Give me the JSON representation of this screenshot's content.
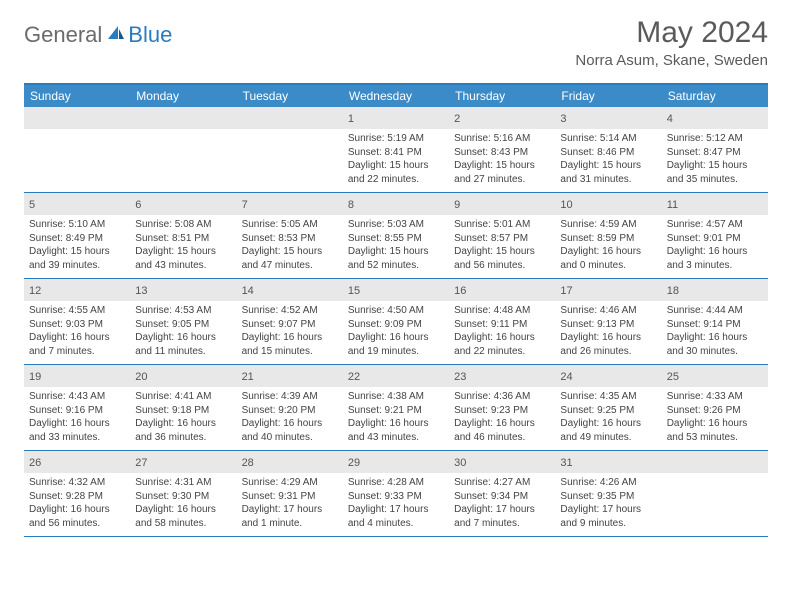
{
  "logo": {
    "general": "General",
    "blue": "Blue"
  },
  "title": "May 2024",
  "location": "Norra Asum, Skane, Sweden",
  "colors": {
    "header_bg": "#3b8bc9",
    "border": "#2b7bbf",
    "daynum_bg": "#e8e8e8",
    "text": "#444444"
  },
  "dayHeaders": [
    "Sunday",
    "Monday",
    "Tuesday",
    "Wednesday",
    "Thursday",
    "Friday",
    "Saturday"
  ],
  "weeks": [
    [
      {
        "empty": true
      },
      {
        "empty": true
      },
      {
        "empty": true
      },
      {
        "n": "1",
        "sunrise": "5:19 AM",
        "sunset": "8:41 PM",
        "daylight": "15 hours and 22 minutes."
      },
      {
        "n": "2",
        "sunrise": "5:16 AM",
        "sunset": "8:43 PM",
        "daylight": "15 hours and 27 minutes."
      },
      {
        "n": "3",
        "sunrise": "5:14 AM",
        "sunset": "8:46 PM",
        "daylight": "15 hours and 31 minutes."
      },
      {
        "n": "4",
        "sunrise": "5:12 AM",
        "sunset": "8:47 PM",
        "daylight": "15 hours and 35 minutes."
      }
    ],
    [
      {
        "n": "5",
        "sunrise": "5:10 AM",
        "sunset": "8:49 PM",
        "daylight": "15 hours and 39 minutes."
      },
      {
        "n": "6",
        "sunrise": "5:08 AM",
        "sunset": "8:51 PM",
        "daylight": "15 hours and 43 minutes."
      },
      {
        "n": "7",
        "sunrise": "5:05 AM",
        "sunset": "8:53 PM",
        "daylight": "15 hours and 47 minutes."
      },
      {
        "n": "8",
        "sunrise": "5:03 AM",
        "sunset": "8:55 PM",
        "daylight": "15 hours and 52 minutes."
      },
      {
        "n": "9",
        "sunrise": "5:01 AM",
        "sunset": "8:57 PM",
        "daylight": "15 hours and 56 minutes."
      },
      {
        "n": "10",
        "sunrise": "4:59 AM",
        "sunset": "8:59 PM",
        "daylight": "16 hours and 0 minutes."
      },
      {
        "n": "11",
        "sunrise": "4:57 AM",
        "sunset": "9:01 PM",
        "daylight": "16 hours and 3 minutes."
      }
    ],
    [
      {
        "n": "12",
        "sunrise": "4:55 AM",
        "sunset": "9:03 PM",
        "daylight": "16 hours and 7 minutes."
      },
      {
        "n": "13",
        "sunrise": "4:53 AM",
        "sunset": "9:05 PM",
        "daylight": "16 hours and 11 minutes."
      },
      {
        "n": "14",
        "sunrise": "4:52 AM",
        "sunset": "9:07 PM",
        "daylight": "16 hours and 15 minutes."
      },
      {
        "n": "15",
        "sunrise": "4:50 AM",
        "sunset": "9:09 PM",
        "daylight": "16 hours and 19 minutes."
      },
      {
        "n": "16",
        "sunrise": "4:48 AM",
        "sunset": "9:11 PM",
        "daylight": "16 hours and 22 minutes."
      },
      {
        "n": "17",
        "sunrise": "4:46 AM",
        "sunset": "9:13 PM",
        "daylight": "16 hours and 26 minutes."
      },
      {
        "n": "18",
        "sunrise": "4:44 AM",
        "sunset": "9:14 PM",
        "daylight": "16 hours and 30 minutes."
      }
    ],
    [
      {
        "n": "19",
        "sunrise": "4:43 AM",
        "sunset": "9:16 PM",
        "daylight": "16 hours and 33 minutes."
      },
      {
        "n": "20",
        "sunrise": "4:41 AM",
        "sunset": "9:18 PM",
        "daylight": "16 hours and 36 minutes."
      },
      {
        "n": "21",
        "sunrise": "4:39 AM",
        "sunset": "9:20 PM",
        "daylight": "16 hours and 40 minutes."
      },
      {
        "n": "22",
        "sunrise": "4:38 AM",
        "sunset": "9:21 PM",
        "daylight": "16 hours and 43 minutes."
      },
      {
        "n": "23",
        "sunrise": "4:36 AM",
        "sunset": "9:23 PM",
        "daylight": "16 hours and 46 minutes."
      },
      {
        "n": "24",
        "sunrise": "4:35 AM",
        "sunset": "9:25 PM",
        "daylight": "16 hours and 49 minutes."
      },
      {
        "n": "25",
        "sunrise": "4:33 AM",
        "sunset": "9:26 PM",
        "daylight": "16 hours and 53 minutes."
      }
    ],
    [
      {
        "n": "26",
        "sunrise": "4:32 AM",
        "sunset": "9:28 PM",
        "daylight": "16 hours and 56 minutes."
      },
      {
        "n": "27",
        "sunrise": "4:31 AM",
        "sunset": "9:30 PM",
        "daylight": "16 hours and 58 minutes."
      },
      {
        "n": "28",
        "sunrise": "4:29 AM",
        "sunset": "9:31 PM",
        "daylight": "17 hours and 1 minute."
      },
      {
        "n": "29",
        "sunrise": "4:28 AM",
        "sunset": "9:33 PM",
        "daylight": "17 hours and 4 minutes."
      },
      {
        "n": "30",
        "sunrise": "4:27 AM",
        "sunset": "9:34 PM",
        "daylight": "17 hours and 7 minutes."
      },
      {
        "n": "31",
        "sunrise": "4:26 AM",
        "sunset": "9:35 PM",
        "daylight": "17 hours and 9 minutes."
      },
      {
        "empty": true
      }
    ]
  ],
  "labels": {
    "sunrise": "Sunrise:",
    "sunset": "Sunset:",
    "daylight": "Daylight:"
  }
}
